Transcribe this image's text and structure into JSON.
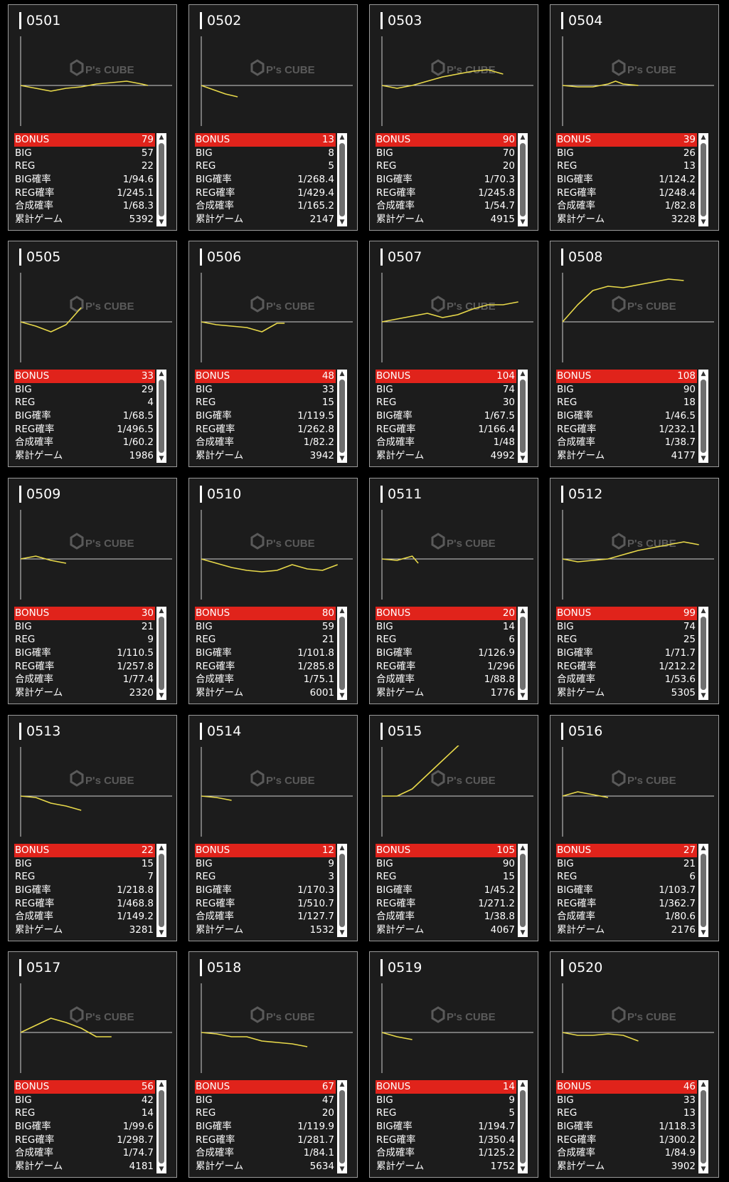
{
  "colors": {
    "bonus_bar": "#e0231b",
    "graph_line": "#e8d94a",
    "card_bg": "#1c1c1c"
  },
  "watermark": {
    "brand": "P's CUBE"
  },
  "icons": {
    "scroll_up": "triangle-up-icon",
    "scroll_down": "triangle-down-icon"
  },
  "labels": {
    "bonus": "BONUS",
    "big": "BIG",
    "reg": "REG",
    "big_rate": "BIG確率",
    "reg_rate": "REG確率",
    "total_rate": "合成確率",
    "games": "累計ゲーム"
  },
  "machines": [
    {
      "id": "0501",
      "bonus": "79",
      "big": "57",
      "reg": "22",
      "big_rate": "1/94.6",
      "reg_rate": "1/245.1",
      "total_rate": "1/68.3",
      "games": "5392",
      "chart_data": {
        "type": "line",
        "x": [
          0,
          10,
          20,
          30,
          40,
          50,
          60,
          70,
          80,
          84
        ],
        "y": [
          0,
          -2,
          -4,
          -2,
          -1,
          1,
          2,
          3,
          1,
          0
        ]
      }
    },
    {
      "id": "0502",
      "bonus": "13",
      "big": "8",
      "reg": "5",
      "big_rate": "1/268.4",
      "reg_rate": "1/429.4",
      "total_rate": "1/165.2",
      "games": "2147",
      "chart_data": {
        "type": "line",
        "x": [
          0,
          8,
          16,
          24
        ],
        "y": [
          0,
          -3,
          -6,
          -8
        ]
      }
    },
    {
      "id": "0503",
      "bonus": "90",
      "big": "70",
      "reg": "20",
      "big_rate": "1/70.3",
      "reg_rate": "1/245.8",
      "total_rate": "1/54.7",
      "games": "4915",
      "chart_data": {
        "type": "line",
        "x": [
          0,
          10,
          20,
          30,
          40,
          50,
          60,
          70,
          80
        ],
        "y": [
          0,
          -2,
          0,
          3,
          6,
          8,
          10,
          11,
          8
        ]
      }
    },
    {
      "id": "0504",
      "bonus": "39",
      "big": "26",
      "reg": "13",
      "big_rate": "1/124.2",
      "reg_rate": "1/248.4",
      "total_rate": "1/82.8",
      "games": "3228",
      "chart_data": {
        "type": "line",
        "x": [
          0,
          10,
          20,
          30,
          35,
          40,
          50
        ],
        "y": [
          0,
          -1,
          -1,
          1,
          3,
          1,
          0
        ]
      }
    },
    {
      "id": "0505",
      "bonus": "33",
      "big": "29",
      "reg": "4",
      "big_rate": "1/68.5",
      "reg_rate": "1/496.5",
      "total_rate": "1/60.2",
      "games": "1986",
      "chart_data": {
        "type": "line",
        "x": [
          0,
          10,
          20,
          30,
          40
        ],
        "y": [
          0,
          -3,
          -7,
          -2,
          10
        ]
      }
    },
    {
      "id": "0506",
      "bonus": "48",
      "big": "33",
      "reg": "15",
      "big_rate": "1/119.5",
      "reg_rate": "1/262.8",
      "total_rate": "1/82.2",
      "games": "3942",
      "chart_data": {
        "type": "line",
        "x": [
          0,
          10,
          20,
          30,
          40,
          50,
          55
        ],
        "y": [
          0,
          -2,
          -3,
          -4,
          -7,
          -1,
          -1
        ]
      }
    },
    {
      "id": "0507",
      "bonus": "104",
      "big": "74",
      "reg": "30",
      "big_rate": "1/67.5",
      "reg_rate": "1/166.4",
      "total_rate": "1/48",
      "games": "4992",
      "chart_data": {
        "type": "line",
        "x": [
          0,
          10,
          20,
          30,
          40,
          50,
          60,
          70,
          80,
          90
        ],
        "y": [
          0,
          2,
          4,
          6,
          3,
          5,
          9,
          12,
          12,
          14
        ]
      }
    },
    {
      "id": "0508",
      "bonus": "108",
      "big": "90",
      "reg": "18",
      "big_rate": "1/46.5",
      "reg_rate": "1/232.1",
      "total_rate": "1/38.7",
      "games": "4177",
      "chart_data": {
        "type": "line",
        "x": [
          0,
          10,
          20,
          30,
          40,
          50,
          60,
          70,
          80
        ],
        "y": [
          0,
          12,
          22,
          25,
          24,
          26,
          28,
          30,
          29
        ]
      }
    },
    {
      "id": "0509",
      "bonus": "30",
      "big": "21",
      "reg": "9",
      "big_rate": "1/110.5",
      "reg_rate": "1/257.8",
      "total_rate": "1/77.4",
      "games": "2320",
      "chart_data": {
        "type": "line",
        "x": [
          0,
          10,
          20,
          30
        ],
        "y": [
          0,
          2,
          -1,
          -3
        ]
      }
    },
    {
      "id": "0510",
      "bonus": "80",
      "big": "59",
      "reg": "21",
      "big_rate": "1/101.8",
      "reg_rate": "1/285.8",
      "total_rate": "1/75.1",
      "games": "6001",
      "chart_data": {
        "type": "line",
        "x": [
          0,
          10,
          20,
          30,
          40,
          50,
          60,
          70,
          80,
          90
        ],
        "y": [
          0,
          -3,
          -6,
          -8,
          -9,
          -8,
          -4,
          -7,
          -8,
          -4
        ]
      }
    },
    {
      "id": "0511",
      "bonus": "20",
      "big": "14",
      "reg": "6",
      "big_rate": "1/126.9",
      "reg_rate": "1/296",
      "total_rate": "1/88.8",
      "games": "1776",
      "chart_data": {
        "type": "line",
        "x": [
          0,
          10,
          20,
          24
        ],
        "y": [
          0,
          -1,
          2,
          -3
        ]
      }
    },
    {
      "id": "0512",
      "bonus": "99",
      "big": "74",
      "reg": "25",
      "big_rate": "1/71.7",
      "reg_rate": "1/212.2",
      "total_rate": "1/53.6",
      "games": "5305",
      "chart_data": {
        "type": "line",
        "x": [
          0,
          10,
          20,
          30,
          40,
          50,
          60,
          70,
          80,
          90
        ],
        "y": [
          0,
          -2,
          -1,
          0,
          3,
          6,
          8,
          10,
          12,
          10
        ]
      }
    },
    {
      "id": "0513",
      "bonus": "22",
      "big": "15",
      "reg": "7",
      "big_rate": "1/218.8",
      "reg_rate": "1/468.8",
      "total_rate": "1/149.2",
      "games": "3281",
      "chart_data": {
        "type": "line",
        "x": [
          0,
          10,
          20,
          30,
          40
        ],
        "y": [
          0,
          -1,
          -5,
          -7,
          -10
        ]
      }
    },
    {
      "id": "0514",
      "bonus": "12",
      "big": "9",
      "reg": "3",
      "big_rate": "1/170.3",
      "reg_rate": "1/510.7",
      "total_rate": "1/127.7",
      "games": "1532",
      "chart_data": {
        "type": "line",
        "x": [
          0,
          10,
          20
        ],
        "y": [
          0,
          -1,
          -3
        ]
      }
    },
    {
      "id": "0515",
      "bonus": "105",
      "big": "90",
      "reg": "15",
      "big_rate": "1/45.2",
      "reg_rate": "1/271.2",
      "total_rate": "1/38.8",
      "games": "4067",
      "chart_data": {
        "type": "line",
        "x": [
          0,
          10,
          20,
          30,
          40,
          50,
          60,
          70,
          80,
          90
        ],
        "y": [
          0,
          0,
          5,
          15,
          25,
          35,
          45,
          48,
          47,
          43
        ]
      }
    },
    {
      "id": "0516",
      "bonus": "27",
      "big": "21",
      "reg": "6",
      "big_rate": "1/103.7",
      "reg_rate": "1/362.7",
      "total_rate": "1/80.6",
      "games": "2176",
      "chart_data": {
        "type": "line",
        "x": [
          0,
          10,
          20,
          30
        ],
        "y": [
          0,
          3,
          1,
          -1
        ]
      }
    },
    {
      "id": "0517",
      "bonus": "56",
      "big": "42",
      "reg": "14",
      "big_rate": "1/99.6",
      "reg_rate": "1/298.7",
      "total_rate": "1/74.7",
      "games": "4181",
      "chart_data": {
        "type": "line",
        "x": [
          0,
          10,
          20,
          30,
          40,
          50,
          60
        ],
        "y": [
          0,
          5,
          10,
          7,
          3,
          -3,
          -3
        ]
      }
    },
    {
      "id": "0518",
      "bonus": "67",
      "big": "47",
      "reg": "20",
      "big_rate": "1/119.9",
      "reg_rate": "1/281.7",
      "total_rate": "1/84.1",
      "games": "5634",
      "chart_data": {
        "type": "line",
        "x": [
          0,
          10,
          20,
          30,
          40,
          50,
          60,
          70
        ],
        "y": [
          0,
          -1,
          -3,
          -3,
          -6,
          -7,
          -8,
          -10
        ]
      }
    },
    {
      "id": "0519",
      "bonus": "14",
      "big": "9",
      "reg": "5",
      "big_rate": "1/194.7",
      "reg_rate": "1/350.4",
      "total_rate": "1/125.2",
      "games": "1752",
      "chart_data": {
        "type": "line",
        "x": [
          0,
          10,
          20
        ],
        "y": [
          0,
          -3,
          -5
        ]
      }
    },
    {
      "id": "0520",
      "bonus": "46",
      "big": "33",
      "reg": "13",
      "big_rate": "1/118.3",
      "reg_rate": "1/300.2",
      "total_rate": "1/84.9",
      "games": "3902",
      "chart_data": {
        "type": "line",
        "x": [
          0,
          10,
          20,
          30,
          40,
          50
        ],
        "y": [
          0,
          -2,
          -2,
          -1,
          -2,
          -6
        ]
      }
    }
  ]
}
